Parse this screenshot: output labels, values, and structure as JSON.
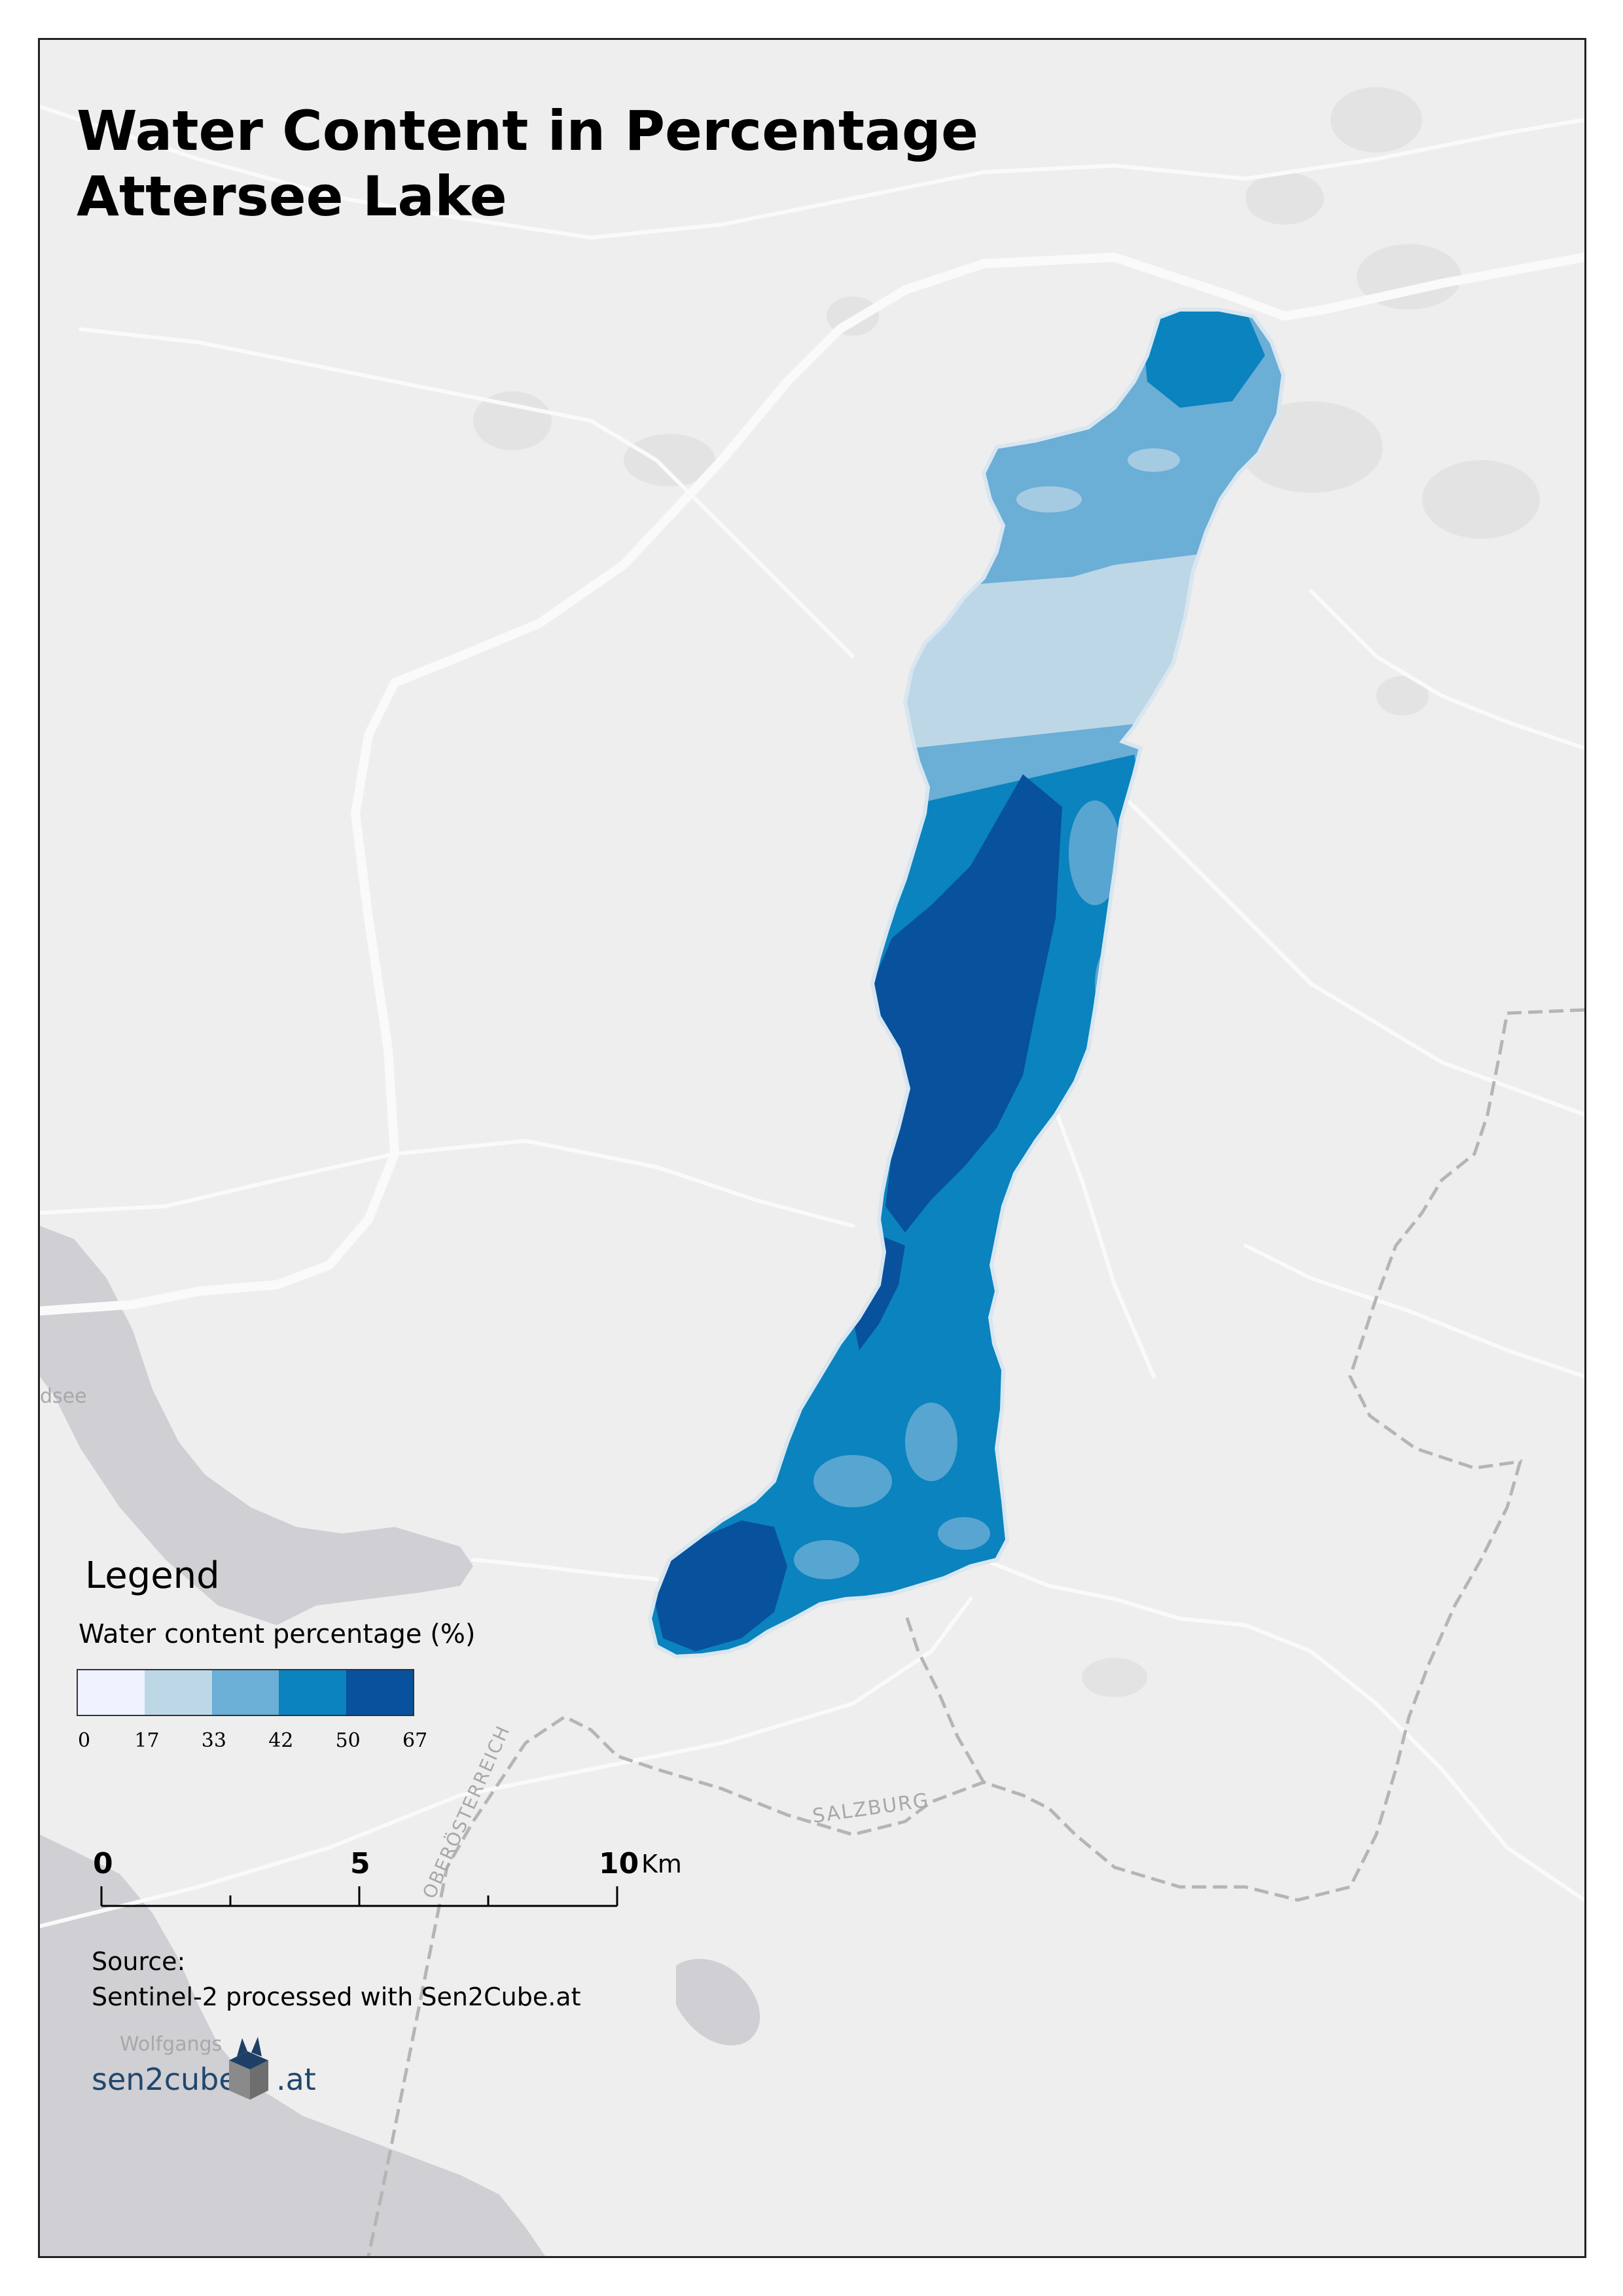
{
  "map": {
    "title_line1": "Water Content in Percentage",
    "title_line2": "Attersee Lake",
    "place_labels": [
      "dsee",
      "SALZBURG",
      "OBERÖSTERREICH",
      "Wolfgangs"
    ]
  },
  "legend": {
    "heading": "Legend",
    "subtitle": "Water content percentage (%)",
    "classes": [
      {
        "from": "0",
        "to": "17",
        "color": "#eff3ff"
      },
      {
        "from": "17",
        "to": "33",
        "color": "#bdd7e7"
      },
      {
        "from": "33",
        "to": "42",
        "color": "#6baed6"
      },
      {
        "from": "42",
        "to": "50",
        "color": "#0a83be"
      },
      {
        "from": "50",
        "to": "67",
        "color": "#08519c"
      }
    ],
    "tick_labels": [
      "0",
      "17",
      "33",
      "42",
      "50",
      "67"
    ]
  },
  "scale_bar": {
    "labels": [
      "0",
      "5",
      "10"
    ],
    "unit": "Km"
  },
  "source": {
    "line1": "Source:",
    "line2": "Sentinel-2 processed with Sen2Cube.at"
  },
  "logo": {
    "text_left": "sen2cube",
    "text_right": ".at",
    "colors": {
      "text": "#21476e",
      "cube_top": "#1f3f66",
      "cube_side": "#7a7a7a"
    }
  },
  "colors": {
    "background": "#eeeeee",
    "neighbor_lakes": "#cfcfd4",
    "roads": "#fafafa",
    "boundary": "#b5b5b5"
  }
}
